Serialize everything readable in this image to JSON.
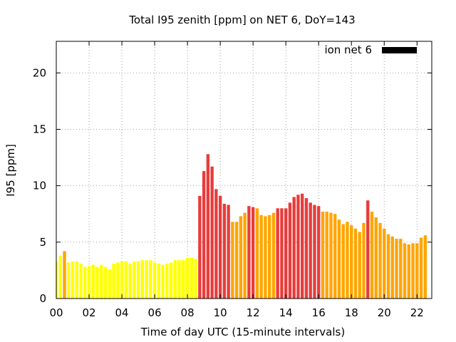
{
  "chart_data": {
    "type": "bar",
    "title": "Total I95 zenith [ppm] on NET 6, DoY=143",
    "xlabel": "Time of day UTC (15-minute intervals)",
    "ylabel": "I95 [ppm]",
    "xlim": [
      0,
      22.9
    ],
    "ylim": [
      0,
      22.8
    ],
    "grid": true,
    "legend": {
      "label": "ion net 6",
      "position": "top-right",
      "color": "#000000"
    },
    "x_ticks": [
      {
        "value": 0,
        "label": "00"
      },
      {
        "value": 2,
        "label": "02"
      },
      {
        "value": 4,
        "label": "04"
      },
      {
        "value": 6,
        "label": "06"
      },
      {
        "value": 8,
        "label": "08"
      },
      {
        "value": 10,
        "label": "10"
      },
      {
        "value": 12,
        "label": "12"
      },
      {
        "value": 14,
        "label": "14"
      },
      {
        "value": 16,
        "label": "16"
      },
      {
        "value": 18,
        "label": "18"
      },
      {
        "value": 20,
        "label": "20"
      },
      {
        "value": 22,
        "label": "22"
      }
    ],
    "y_ticks": [
      {
        "value": 0,
        "label": "0"
      },
      {
        "value": 5,
        "label": "5"
      },
      {
        "value": 10,
        "label": "10"
      },
      {
        "value": 15,
        "label": "15"
      },
      {
        "value": 20,
        "label": "20"
      }
    ],
    "bar_width_hours": 0.19,
    "colors": {
      "yellow": "#ffff00",
      "orange": "#ffa500",
      "red": "#e83c3c"
    },
    "bars": [
      {
        "x": 0.0,
        "value": 3.3,
        "color": "yellow"
      },
      {
        "x": 0.25,
        "value": 3.8,
        "color": "yellow"
      },
      {
        "x": 0.5,
        "value": 4.2,
        "color": "orange"
      },
      {
        "x": 0.75,
        "value": 3.2,
        "color": "yellow"
      },
      {
        "x": 1.0,
        "value": 3.3,
        "color": "yellow"
      },
      {
        "x": 1.25,
        "value": 3.3,
        "color": "yellow"
      },
      {
        "x": 1.5,
        "value": 3.1,
        "color": "yellow"
      },
      {
        "x": 1.75,
        "value": 2.8,
        "color": "yellow"
      },
      {
        "x": 2.0,
        "value": 2.9,
        "color": "yellow"
      },
      {
        "x": 2.25,
        "value": 3.0,
        "color": "yellow"
      },
      {
        "x": 2.5,
        "value": 2.8,
        "color": "yellow"
      },
      {
        "x": 2.75,
        "value": 3.0,
        "color": "yellow"
      },
      {
        "x": 3.0,
        "value": 2.8,
        "color": "yellow"
      },
      {
        "x": 3.25,
        "value": 2.6,
        "color": "yellow"
      },
      {
        "x": 3.5,
        "value": 3.1,
        "color": "yellow"
      },
      {
        "x": 3.75,
        "value": 3.2,
        "color": "yellow"
      },
      {
        "x": 4.0,
        "value": 3.3,
        "color": "yellow"
      },
      {
        "x": 4.25,
        "value": 3.3,
        "color": "yellow"
      },
      {
        "x": 4.5,
        "value": 3.1,
        "color": "yellow"
      },
      {
        "x": 4.75,
        "value": 3.3,
        "color": "yellow"
      },
      {
        "x": 5.0,
        "value": 3.3,
        "color": "yellow"
      },
      {
        "x": 5.25,
        "value": 3.4,
        "color": "yellow"
      },
      {
        "x": 5.5,
        "value": 3.4,
        "color": "yellow"
      },
      {
        "x": 5.75,
        "value": 3.4,
        "color": "yellow"
      },
      {
        "x": 6.0,
        "value": 3.2,
        "color": "yellow"
      },
      {
        "x": 6.25,
        "value": 3.1,
        "color": "yellow"
      },
      {
        "x": 6.5,
        "value": 3.0,
        "color": "yellow"
      },
      {
        "x": 6.75,
        "value": 3.1,
        "color": "yellow"
      },
      {
        "x": 7.0,
        "value": 3.2,
        "color": "yellow"
      },
      {
        "x": 7.25,
        "value": 3.4,
        "color": "yellow"
      },
      {
        "x": 7.5,
        "value": 3.4,
        "color": "yellow"
      },
      {
        "x": 7.75,
        "value": 3.4,
        "color": "yellow"
      },
      {
        "x": 8.0,
        "value": 3.6,
        "color": "yellow"
      },
      {
        "x": 8.25,
        "value": 3.6,
        "color": "yellow"
      },
      {
        "x": 8.5,
        "value": 3.5,
        "color": "yellow"
      },
      {
        "x": 8.75,
        "value": 9.1,
        "color": "red"
      },
      {
        "x": 9.0,
        "value": 11.3,
        "color": "red"
      },
      {
        "x": 9.25,
        "value": 12.8,
        "color": "red"
      },
      {
        "x": 9.5,
        "value": 11.7,
        "color": "red"
      },
      {
        "x": 9.75,
        "value": 9.7,
        "color": "red"
      },
      {
        "x": 10.0,
        "value": 9.1,
        "color": "red"
      },
      {
        "x": 10.25,
        "value": 8.4,
        "color": "red"
      },
      {
        "x": 10.5,
        "value": 8.3,
        "color": "red"
      },
      {
        "x": 10.75,
        "value": 6.8,
        "color": "orange"
      },
      {
        "x": 11.0,
        "value": 6.8,
        "color": "orange"
      },
      {
        "x": 11.25,
        "value": 7.3,
        "color": "orange"
      },
      {
        "x": 11.5,
        "value": 7.6,
        "color": "orange"
      },
      {
        "x": 11.75,
        "value": 8.2,
        "color": "red"
      },
      {
        "x": 12.0,
        "value": 8.1,
        "color": "red"
      },
      {
        "x": 12.25,
        "value": 8.0,
        "color": "orange"
      },
      {
        "x": 12.5,
        "value": 7.4,
        "color": "orange"
      },
      {
        "x": 12.75,
        "value": 7.3,
        "color": "orange"
      },
      {
        "x": 13.0,
        "value": 7.4,
        "color": "orange"
      },
      {
        "x": 13.25,
        "value": 7.6,
        "color": "orange"
      },
      {
        "x": 13.5,
        "value": 8.0,
        "color": "red"
      },
      {
        "x": 13.75,
        "value": 8.0,
        "color": "red"
      },
      {
        "x": 14.0,
        "value": 8.0,
        "color": "red"
      },
      {
        "x": 14.25,
        "value": 8.5,
        "color": "red"
      },
      {
        "x": 14.5,
        "value": 9.0,
        "color": "red"
      },
      {
        "x": 14.75,
        "value": 9.2,
        "color": "red"
      },
      {
        "x": 15.0,
        "value": 9.3,
        "color": "red"
      },
      {
        "x": 15.25,
        "value": 8.9,
        "color": "red"
      },
      {
        "x": 15.5,
        "value": 8.5,
        "color": "red"
      },
      {
        "x": 15.75,
        "value": 8.3,
        "color": "red"
      },
      {
        "x": 16.0,
        "value": 8.2,
        "color": "red"
      },
      {
        "x": 16.25,
        "value": 7.7,
        "color": "orange"
      },
      {
        "x": 16.5,
        "value": 7.7,
        "color": "orange"
      },
      {
        "x": 16.75,
        "value": 7.6,
        "color": "orange"
      },
      {
        "x": 17.0,
        "value": 7.5,
        "color": "orange"
      },
      {
        "x": 17.25,
        "value": 7.0,
        "color": "orange"
      },
      {
        "x": 17.5,
        "value": 6.6,
        "color": "orange"
      },
      {
        "x": 17.75,
        "value": 6.8,
        "color": "orange"
      },
      {
        "x": 18.0,
        "value": 6.5,
        "color": "orange"
      },
      {
        "x": 18.25,
        "value": 6.2,
        "color": "orange"
      },
      {
        "x": 18.5,
        "value": 5.9,
        "color": "orange"
      },
      {
        "x": 18.75,
        "value": 6.7,
        "color": "orange"
      },
      {
        "x": 19.0,
        "value": 8.7,
        "color": "red"
      },
      {
        "x": 19.25,
        "value": 7.7,
        "color": "orange"
      },
      {
        "x": 19.5,
        "value": 7.2,
        "color": "orange"
      },
      {
        "x": 19.75,
        "value": 6.7,
        "color": "orange"
      },
      {
        "x": 20.0,
        "value": 6.2,
        "color": "orange"
      },
      {
        "x": 20.25,
        "value": 5.7,
        "color": "orange"
      },
      {
        "x": 20.5,
        "value": 5.5,
        "color": "orange"
      },
      {
        "x": 20.75,
        "value": 5.3,
        "color": "orange"
      },
      {
        "x": 21.0,
        "value": 5.3,
        "color": "orange"
      },
      {
        "x": 21.25,
        "value": 4.9,
        "color": "orange"
      },
      {
        "x": 21.5,
        "value": 4.8,
        "color": "orange"
      },
      {
        "x": 21.75,
        "value": 4.9,
        "color": "orange"
      },
      {
        "x": 22.0,
        "value": 4.9,
        "color": "orange"
      },
      {
        "x": 22.25,
        "value": 5.4,
        "color": "orange"
      },
      {
        "x": 22.5,
        "value": 5.6,
        "color": "orange"
      }
    ]
  }
}
